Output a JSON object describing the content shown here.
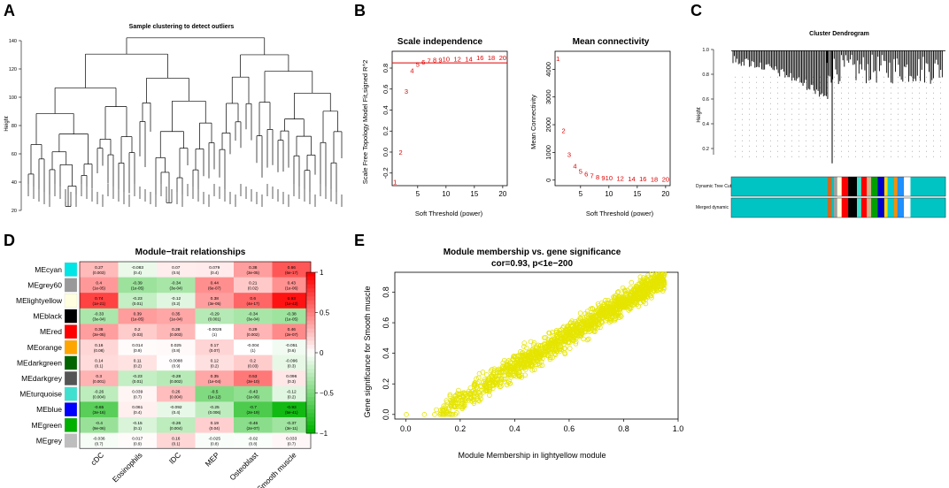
{
  "panels": {
    "A": {
      "letter": "A",
      "chart_data": {
        "type": "dendrogram",
        "title": "Sample clustering to detect outliers",
        "ylabel": "Height",
        "yticks": [
          20,
          40,
          60,
          80,
          100,
          120,
          140
        ],
        "ylim": [
          20,
          145
        ]
      }
    },
    "B": {
      "letter": "B",
      "chart_data": [
        {
          "type": "scatter",
          "title": "Scale independence",
          "xlabel": "Soft Threshold (power)",
          "ylabel": "Scale Free Topology Model Fit,signed R^2",
          "x": [
            1,
            2,
            3,
            4,
            5,
            6,
            7,
            8,
            9,
            10,
            12,
            14,
            16,
            18,
            20
          ],
          "labels": [
            "1",
            "2",
            "3",
            "4",
            "5",
            "6",
            "7",
            "8",
            "9",
            "10",
            "12",
            "14",
            "16",
            "18",
            "20"
          ],
          "y": [
            -0.28,
            0.0,
            0.58,
            0.78,
            0.84,
            0.86,
            0.87,
            0.88,
            0.88,
            0.89,
            0.89,
            0.89,
            0.9,
            0.9,
            0.9
          ],
          "cutoff": 0.85,
          "xticks": [
            5,
            10,
            15,
            20
          ],
          "yticks": [
            -0.2,
            0.0,
            0.2,
            0.4,
            0.6,
            0.8
          ],
          "xlim": [
            0.5,
            20.8
          ],
          "ylim": [
            -0.32,
            0.96
          ]
        },
        {
          "type": "scatter",
          "title": "Mean connectivity",
          "xlabel": "Soft Threshold (power)",
          "ylabel": "Mean Connectivity",
          "x": [
            1,
            2,
            3,
            4,
            5,
            6,
            7,
            8,
            9,
            10,
            12,
            14,
            16,
            18,
            20
          ],
          "labels": [
            "1",
            "2",
            "3",
            "4",
            "5",
            "6",
            "7",
            "8",
            "9",
            "10",
            "12",
            "14",
            "16",
            "18",
            "20"
          ],
          "y": [
            4400,
            1800,
            930,
            520,
            330,
            230,
            160,
            120,
            90,
            80,
            70,
            60,
            50,
            45,
            40
          ],
          "xticks": [
            5,
            10,
            15,
            20
          ],
          "yticks": [
            0,
            1000,
            2000,
            3000,
            4000
          ],
          "xlim": [
            0.5,
            20.8
          ],
          "ylim": [
            -200,
            4650
          ]
        }
      ]
    },
    "C": {
      "letter": "C",
      "chart_data": {
        "type": "dendrogram",
        "title": "Cluster Dendrogram",
        "ylabel": "Height",
        "yticks": [
          0.2,
          0.4,
          0.6,
          0.8,
          1.0
        ],
        "ylim": [
          0.0,
          1.0
        ],
        "bar_labels": [
          "Dynamic Tree Cut",
          "Merged dynamic"
        ],
        "module_colors": [
          "#00c4c4",
          "#d2691e",
          "#00c4c4",
          "#a0a0a0",
          "#ffd700",
          "#ffffe0",
          "#ff0000",
          "#000000",
          "#40e0d0",
          "#ff0000",
          "#d2b48c",
          "#0000cd",
          "#00ced1",
          "#ff8c00",
          "#00c4c4",
          "#ffffff",
          "#1e90ff",
          "#00c4c4"
        ]
      }
    },
    "D": {
      "letter": "D",
      "chart_data": {
        "type": "heatmap",
        "title": "Module−trait relationships",
        "rows": [
          "MEcyan",
          "MEgrey60",
          "MElightyellow",
          "MEblack",
          "MEred",
          "MEorange",
          "MEdarkgreen",
          "MEdarkgrey",
          "MEturquoise",
          "MEblue",
          "MEgreen",
          "MEgrey"
        ],
        "row_colors": [
          "#00e5e5",
          "#999999",
          "#ffffe0",
          "#000000",
          "#ff0000",
          "#ffa500",
          "#006400",
          "#555555",
          "#40e0d0",
          "#0000ff",
          "#00b000",
          "#bebebe"
        ],
        "columns": [
          "cDC",
          "Eosinophils",
          "lDC",
          "MEP",
          "Osteoblast",
          "Smooth muscle"
        ],
        "values": [
          [
            0.27,
            -0.083,
            0.07,
            0.079,
            0.38,
            0.66
          ],
          [
            0.4,
            -0.39,
            -0.34,
            0.44,
            0.21,
            0.43
          ],
          [
            0.74,
            -0.23,
            -0.12,
            0.38,
            0.6,
            0.93
          ],
          [
            -0.33,
            0.39,
            0.35,
            -0.29,
            -0.34,
            -0.38
          ],
          [
            0.38,
            0.2,
            0.28,
            -0.0026,
            0.29,
            0.46
          ],
          [
            0.16,
            0.014,
            0.025,
            0.17,
            -0.004,
            -0.051
          ],
          [
            0.14,
            0.11,
            0.0088,
            0.12,
            0.2,
            -0.096
          ],
          [
            0.3,
            -0.23,
            -0.28,
            0.35,
            0.53,
            0.096
          ],
          [
            -0.26,
            0.039,
            0.26,
            -0.5,
            -0.43,
            -0.12
          ],
          [
            -0.65,
            0.061,
            -0.092,
            -0.25,
            -0.7,
            -0.93
          ],
          [
            -0.4,
            -0.15,
            -0.26,
            0.19,
            -0.46,
            -0.37
          ],
          [
            -0.036,
            0.017,
            0.16,
            -0.025,
            -0.02,
            0.033
          ]
        ],
        "values_text": [
          [
            "0.27",
            "-0.083",
            "0.07",
            "0.079",
            "0.38",
            "0.66"
          ],
          [
            "0.4",
            "-0.39",
            "-0.34",
            "0.44",
            "0.21",
            "0.43"
          ],
          [
            "0.74",
            "-0.23",
            "-0.12",
            "0.38",
            "0.6",
            "0.93"
          ],
          [
            "-0.33",
            "0.39",
            "0.35",
            "-0.29",
            "-0.34",
            "-0.38"
          ],
          [
            "0.38",
            "0.2",
            "0.28",
            "-0.0026",
            "0.29",
            "0.46"
          ],
          [
            "0.16",
            "0.014",
            "0.025",
            "0.17",
            "-0.004",
            "-0.051"
          ],
          [
            "0.14",
            "0.11",
            "0.0088",
            "0.12",
            "0.2",
            "-0.096"
          ],
          [
            "0.3",
            "-0.23",
            "-0.28",
            "0.35",
            "0.53",
            "0.096"
          ],
          [
            "-0.26",
            "0.039",
            "0.26",
            "-0.5",
            "-0.43",
            "-0.12"
          ],
          [
            "-0.65",
            "0.061",
            "-0.092",
            "-0.25",
            "-0.7",
            "-0.93"
          ],
          [
            "-0.4",
            "-0.15",
            "-0.26",
            "0.19",
            "-0.46",
            "-0.37"
          ],
          [
            "-0.036",
            "0.017",
            "0.16",
            "-0.025",
            "-0.02",
            "0.033"
          ]
        ],
        "pvalues": [
          [
            "(0.003)",
            "(0.4)",
            "(0.5)",
            "(0.4)",
            "(3e-05)",
            "(6e-17)"
          ],
          [
            "(1e-05)",
            "(1e-05)",
            "(3e-04)",
            "(6e-07)",
            "(0.02)",
            "(1e-06)"
          ],
          [
            "(1e-21)",
            "(0.01)",
            "(0.2)",
            "(3e-05)",
            "(4e-17)",
            "(1e-42)"
          ],
          [
            "(3e-04)",
            "(1e-05)",
            "(1e-04)",
            "(0.001)",
            "(3e-04)",
            "(1e-05)"
          ],
          [
            "(3e-05)",
            "(0.03)",
            "(0.003)",
            "(1)",
            "(0.002)",
            "(2e-07)"
          ],
          [
            "(0.08)",
            "(0.9)",
            "(0.8)",
            "(0.07)",
            "(1)",
            "(0.6)"
          ],
          [
            "(0.1)",
            "(0.2)",
            "(0.9)",
            "(0.2)",
            "(0.03)",
            "(0.3)"
          ],
          [
            "(0.001)",
            "(0.01)",
            "(0.002)",
            "(1e-04)",
            "(3e-10)",
            "(0.3)"
          ],
          [
            "(0.004)",
            "(0.7)",
            "(0.004)",
            "(1e-12)",
            "(1e-06)",
            "(0.2)"
          ],
          [
            "(3e-16)",
            "(0.4)",
            "(0.4)",
            "(0.006)",
            "(2e-19)",
            "(5e-41)"
          ],
          [
            "(9e-06)",
            "(0.1)",
            "(0.004)",
            "(0.04)",
            "(2e-07)",
            "(3e-11)"
          ],
          [
            "(0.7)",
            "(0.9)",
            "(0.1)",
            "(0.8)",
            "(0.8)",
            "(0.7)"
          ]
        ],
        "colorbar_ticks": [
          1,
          0.5,
          0,
          -0.5,
          -1
        ],
        "colorbar_labels": [
          "1",
          "0.5",
          "0",
          "−0.5",
          "−1"
        ],
        "colors": {
          "low": "#00b400",
          "mid": "#ffffff",
          "high": "#ff0000"
        }
      }
    },
    "E": {
      "letter": "E",
      "chart_data": {
        "type": "scatter",
        "title": "Module membership vs. gene significance",
        "subtitle": "cor=0.93, p<1e−200",
        "xlabel": "Module Membership in lightyellow module",
        "ylabel": "Gene significance for Smooth muscle",
        "xticks": [
          0.0,
          0.2,
          0.4,
          0.6,
          0.8,
          1.0
        ],
        "xtick_labels": [
          "0.0",
          "0.2",
          "0.4",
          "0.6",
          "0.8",
          "1.0"
        ],
        "yticks": [
          0.0,
          0.2,
          0.4,
          0.6,
          0.8
        ],
        "ytick_labels": [
          "0.0",
          "0.2",
          "0.4",
          "0.6",
          "0.8"
        ],
        "xlim": [
          -0.04,
          1.0
        ],
        "ylim": [
          -0.03,
          0.93
        ],
        "n_points": 1500,
        "trend": {
          "slope": 1.07,
          "intercept": -0.12
        },
        "point_color": "#e5e500"
      }
    }
  }
}
